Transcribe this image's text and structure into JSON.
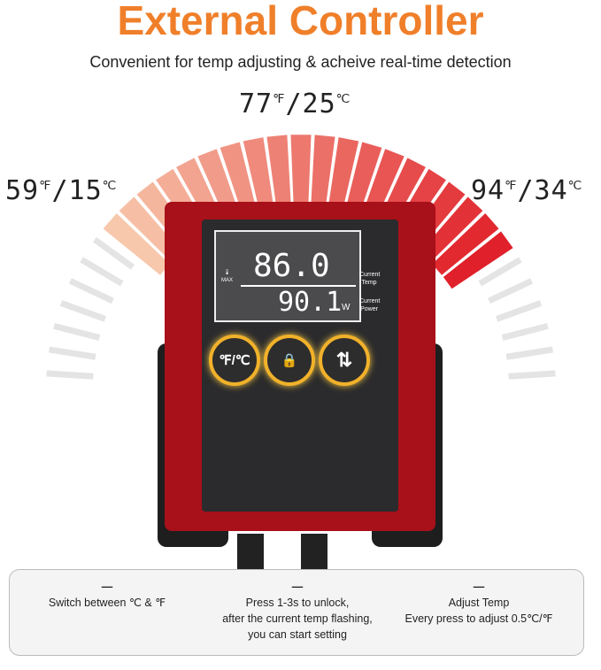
{
  "title": "External Controller",
  "subtitle": "Convenient for temp adjusting & acheive real-time detection",
  "gauge": {
    "left": {
      "f": "59",
      "c": "15"
    },
    "top": {
      "f": "77",
      "c": "25"
    },
    "right": {
      "f": "94",
      "c": "34"
    },
    "unit_f": "℉",
    "unit_c": "℃",
    "sep": "/"
  },
  "display": {
    "temp": "86.0",
    "power": "90.1",
    "power_unit": "W",
    "temp_label": "Current Temp",
    "power_label": "Current Power",
    "icon_label": "MAX"
  },
  "buttons": [
    {
      "label": "℉/℃"
    },
    {
      "label": "🔒"
    },
    {
      "label": "⇅"
    }
  ],
  "notes": [
    {
      "dash": "—",
      "text": "Switch between ℃ & ℉"
    },
    {
      "dash": "—",
      "lines": [
        "Press 1-3s to unlock,",
        "after the current temp flashing,",
        "you can start setting"
      ]
    },
    {
      "dash": "—",
      "lines": [
        "Adjust Temp",
        "Every press to adjust 0.5℃/℉"
      ]
    }
  ],
  "colors": {
    "title": "#f07f2a",
    "device": "#b0121a",
    "hot": "#e0262a",
    "cool": "#f8cdb0"
  }
}
